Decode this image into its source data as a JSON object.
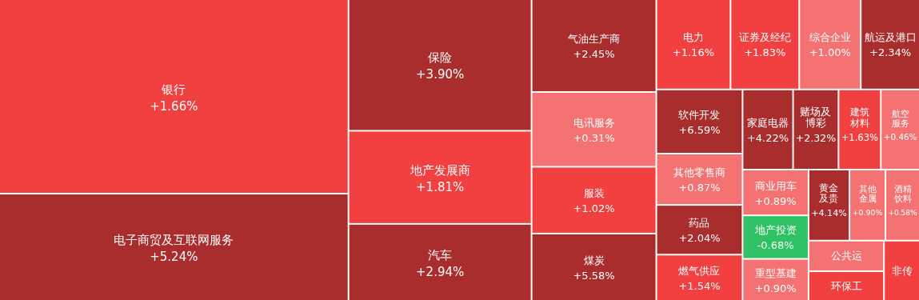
{
  "chart_data": {
    "type": "other",
    "categories": [
      "银行",
      "电子商贸及互联网服务",
      "保险",
      "地产发展商",
      "汽车",
      "气油生产商",
      "电讯服务",
      "服装",
      "煤炭",
      "电力",
      "证券及经纪",
      "综合企业",
      "航运及港口",
      "软件开发",
      "其他零售商",
      "药品",
      "燃气供应",
      "家庭电器",
      "赌场及博彩",
      "建筑材料",
      "航空服务",
      "商业用车",
      "地产投资",
      "重型基建",
      "黄金及贵",
      "其他金属",
      "酒精饮料",
      "公共运",
      "环保工",
      "非传"
    ],
    "values": [
      1.66,
      5.24,
      3.9,
      1.81,
      2.94,
      2.45,
      0.31,
      1.02,
      5.58,
      1.16,
      1.83,
      1.0,
      2.34,
      6.59,
      0.87,
      2.04,
      1.54,
      4.22,
      2.32,
      1.63,
      0.46,
      0.89,
      -0.68,
      0.9,
      4.14,
      0.9,
      0.58,
      null,
      null,
      null
    ],
    "value_labels": [
      "+1.66%",
      "+5.24%",
      "+3.90%",
      "+1.81%",
      "+2.94%",
      "+2.45%",
      "+0.31%",
      "+1.02%",
      "+5.58%",
      "+1.16%",
      "+1.83%",
      "+1.00%",
      "+2.34%",
      "+6.59%",
      "+0.87%",
      "+2.04%",
      "+1.54%",
      "+4.22%",
      "+2.32%",
      "+1.63%",
      "+0.46%",
      "+0.89%",
      "-0.68%",
      "+0.90%",
      "+4.14%",
      "+0.90%",
      "+0.58%",
      null,
      null,
      null
    ],
    "colors": [
      "#f23f3f",
      "#a92d2d",
      "#a92d2d",
      "#f23f3f",
      "#a92d2d",
      "#a92d2d",
      "#f57272",
      "#f23f3f",
      "#a92d2d",
      "#f23f3f",
      "#f23f3f",
      "#f57272",
      "#a92d2d",
      "#a92d2d",
      "#f57272",
      "#a92d2d",
      "#f23f3f",
      "#a92d2d",
      "#a92d2d",
      "#f23f3f",
      "#f57272",
      "#f57272",
      "#2ec264",
      "#f57272",
      "#a92d2d",
      "#f57272",
      "#f57272",
      "#f57272",
      "#f23f3f",
      "#f23f3f"
    ]
  }
}
